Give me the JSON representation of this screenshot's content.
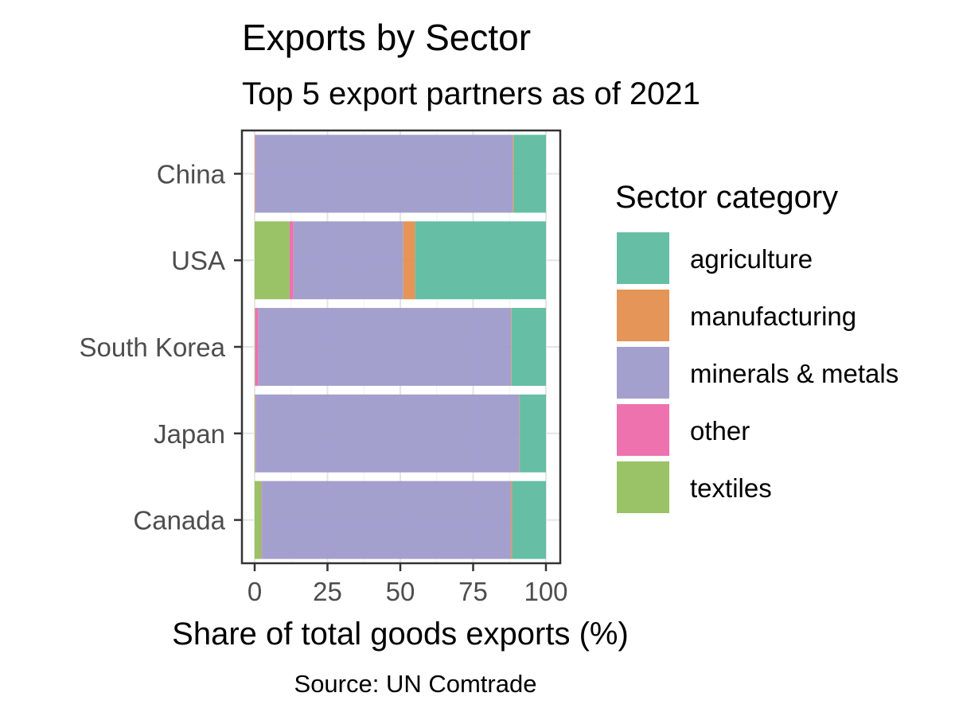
{
  "chart_data": {
    "type": "bar",
    "orientation": "horizontal",
    "stacked": true,
    "title": "Exports by Sector",
    "subtitle": "Top 5 export partners as of 2021",
    "xlabel": "Share of total goods exports (%)",
    "ylabel": "",
    "caption": "Source: UN Comtrade",
    "xlim": [
      0,
      100
    ],
    "xticks": [
      "0",
      "25",
      "50",
      "75",
      "100"
    ],
    "grid": true,
    "legend_position": "right",
    "legend_title": "Sector category",
    "categories": [
      "China",
      "USA",
      "South Korea",
      "Japan",
      "Canada"
    ],
    "series": [
      {
        "name": "textiles",
        "color": "#95BF5F",
        "values": [
          0.2,
          12.0,
          0.2,
          0.3,
          2.3
        ]
      },
      {
        "name": "other",
        "color": "#EC6AA9",
        "values": [
          0.3,
          1.3,
          1.1,
          0.2,
          0.2
        ]
      },
      {
        "name": "minerals & metals",
        "color": "#9E9BCB",
        "values": [
          88.1,
          37.7,
          86.7,
          90.4,
          85.5
        ]
      },
      {
        "name": "manufacturing",
        "color": "#E38F4E",
        "values": [
          0.3,
          4.1,
          0.2,
          0.1,
          0.4
        ]
      },
      {
        "name": "agriculture",
        "color": "#5EBBA0",
        "values": [
          11.1,
          44.9,
          11.8,
          9.0,
          11.6
        ]
      }
    ],
    "legend_order": [
      "agriculture",
      "manufacturing",
      "minerals & metals",
      "other",
      "textiles"
    ]
  }
}
